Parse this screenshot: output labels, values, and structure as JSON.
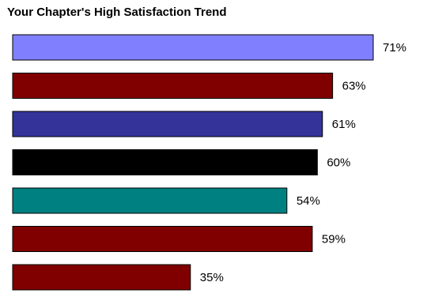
{
  "chart_data": {
    "type": "bar",
    "orientation": "horizontal",
    "title": "Your Chapter's High Satisfaction Trend",
    "xlabel": "",
    "ylabel": "",
    "xlim": [
      0,
      100
    ],
    "grid": false,
    "legend": "none",
    "categories": [
      "",
      "",
      "",
      "",
      "",
      "",
      ""
    ],
    "values": [
      71,
      63,
      61,
      60,
      54,
      59,
      35
    ],
    "value_labels": [
      "71%",
      "63%",
      "61%",
      "60%",
      "54%",
      "59%",
      "35%"
    ],
    "colors": [
      "#8080FF",
      "#800000",
      "#333399",
      "#000000",
      "#008080",
      "#800000",
      "#800000"
    ]
  }
}
